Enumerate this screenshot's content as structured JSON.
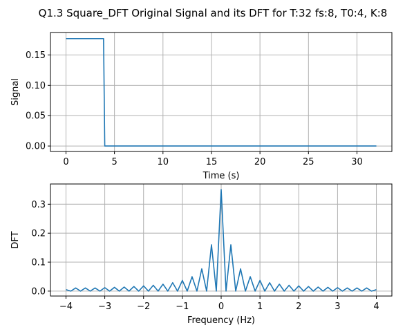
{
  "figure": {
    "title": "Q1.3 Square_DFT Original Signal and its DFT for T:32 fs:8, T0:4, K:8"
  },
  "chart_data": [
    {
      "type": "line",
      "xlabel": "Time (s)",
      "ylabel": "Signal",
      "xlim": [
        -1.6,
        33.6
      ],
      "ylim": [
        -0.009,
        0.187
      ],
      "xticks": [
        0,
        5,
        10,
        15,
        20,
        25,
        30
      ],
      "xtick_labels": [
        "0",
        "5",
        "10",
        "15",
        "20",
        "25",
        "30"
      ],
      "yticks": [
        0.0,
        0.05,
        0.1,
        0.15
      ],
      "ytick_labels": [
        "0.00",
        "0.05",
        "0.10",
        "0.15"
      ],
      "grid": true,
      "series": [
        {
          "color": "#1f77b4",
          "x": [
            0,
            3.875,
            4.0,
            32
          ],
          "y": [
            0.177,
            0.177,
            0.0,
            0.0
          ]
        }
      ]
    },
    {
      "type": "line",
      "xlabel": "Frequency (Hz)",
      "ylabel": "DFT",
      "xlim": [
        -4.4,
        4.4
      ],
      "ylim": [
        -0.017,
        0.37
      ],
      "xticks": [
        -4,
        -3,
        -2,
        -1,
        0,
        1,
        2,
        3,
        4
      ],
      "xtick_labels": [
        "−4",
        "−3",
        "−2",
        "−1",
        "0",
        "1",
        "2",
        "3",
        "4"
      ],
      "yticks": [
        0.0,
        0.1,
        0.2,
        0.3
      ],
      "ytick_labels": [
        "0.0",
        "0.1",
        "0.2",
        "0.3"
      ],
      "grid": true,
      "series": [
        {
          "color": "#1f77b4",
          "x": [
            -4.0,
            -3.875,
            -3.75,
            -3.625,
            -3.5,
            -3.375,
            -3.25,
            -3.125,
            -3.0,
            -2.875,
            -2.75,
            -2.625,
            -2.5,
            -2.375,
            -2.25,
            -2.125,
            -2.0,
            -1.875,
            -1.75,
            -1.625,
            -1.5,
            -1.375,
            -1.25,
            -1.125,
            -1.0,
            -0.875,
            -0.75,
            -0.625,
            -0.5,
            -0.375,
            -0.25,
            -0.125,
            0.0,
            0.125,
            0.25,
            0.375,
            0.5,
            0.625,
            0.75,
            0.875,
            1.0,
            1.125,
            1.25,
            1.375,
            1.5,
            1.625,
            1.75,
            1.875,
            2.0,
            2.125,
            2.25,
            2.375,
            2.5,
            2.625,
            2.75,
            2.875,
            3.0,
            3.125,
            3.25,
            3.375,
            3.5,
            3.625,
            3.75,
            3.875,
            4.0
          ],
          "y": [
            0.005,
            0.0,
            0.011,
            0.0,
            0.011,
            0.0,
            0.011,
            0.0,
            0.012,
            0.0,
            0.013,
            0.0,
            0.014,
            0.0,
            0.016,
            0.0,
            0.018,
            0.0,
            0.02,
            0.0,
            0.024,
            0.0,
            0.029,
            0.0,
            0.037,
            0.0,
            0.05,
            0.0,
            0.077,
            0.0,
            0.16,
            0.0,
            0.351,
            0.0,
            0.16,
            0.0,
            0.077,
            0.0,
            0.05,
            0.0,
            0.037,
            0.0,
            0.029,
            0.0,
            0.024,
            0.0,
            0.02,
            0.0,
            0.018,
            0.0,
            0.016,
            0.0,
            0.014,
            0.0,
            0.013,
            0.0,
            0.012,
            0.0,
            0.011,
            0.0,
            0.011,
            0.0,
            0.011,
            0.0,
            0.005
          ]
        }
      ]
    }
  ]
}
